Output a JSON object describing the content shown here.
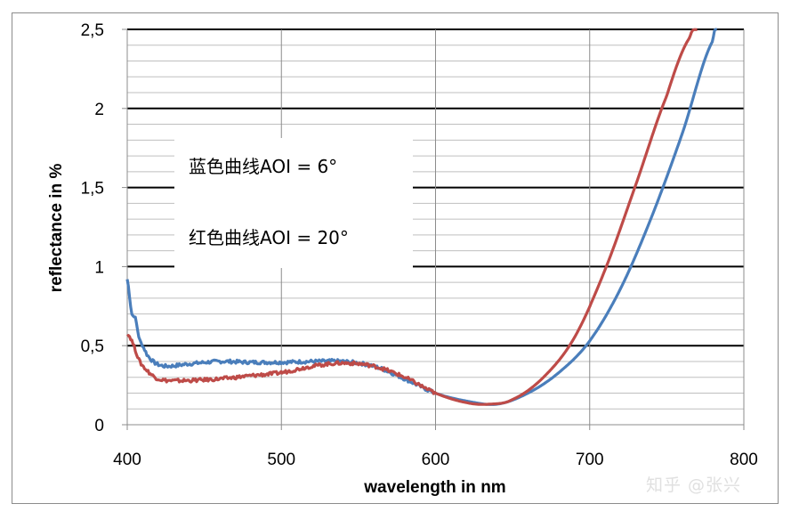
{
  "chart_data": {
    "type": "line",
    "title": "",
    "xlabel": "wavelength in nm",
    "ylabel": "reflectance in %",
    "xlim": [
      400,
      800
    ],
    "ylim": [
      0,
      2.5
    ],
    "x_ticks": [
      "400",
      "500",
      "600",
      "700",
      "800"
    ],
    "y_ticks": [
      "0",
      "0,5",
      "1",
      "1,5",
      "2",
      "2,5"
    ],
    "grid": "major and minor",
    "legend_text": [
      "蓝色曲线AOI = 6°",
      "红色曲线AOI = 20°"
    ],
    "series": [
      {
        "name": "AOI = 6°",
        "color": "#4a7ebb",
        "x": [
          400,
          401,
          403,
          405,
          408,
          410,
          413,
          418,
          425,
          440,
          460,
          480,
          500,
          520,
          540,
          560,
          580,
          600,
          620,
          640,
          660,
          680,
          700,
          720,
          740,
          760,
          780,
          783
        ],
        "y": [
          0.92,
          0.85,
          0.7,
          0.68,
          0.54,
          0.5,
          0.44,
          0.39,
          0.37,
          0.385,
          0.4,
          0.395,
          0.395,
          0.4,
          0.4,
          0.37,
          0.29,
          0.2,
          0.15,
          0.13,
          0.2,
          0.33,
          0.53,
          0.86,
          1.31,
          1.84,
          2.43,
          2.5
        ]
      },
      {
        "name": "AOI = 20°",
        "color": "#be4b48",
        "x": [
          400,
          402,
          405,
          408,
          412,
          418,
          425,
          440,
          460,
          480,
          500,
          520,
          540,
          560,
          580,
          600,
          620,
          635,
          650,
          670,
          690,
          710,
          730,
          750,
          765,
          770
        ],
        "y": [
          0.57,
          0.55,
          0.48,
          0.4,
          0.35,
          0.3,
          0.28,
          0.28,
          0.29,
          0.31,
          0.33,
          0.37,
          0.39,
          0.37,
          0.3,
          0.2,
          0.14,
          0.13,
          0.16,
          0.3,
          0.55,
          0.98,
          1.52,
          2.08,
          2.45,
          2.5
        ]
      }
    ]
  },
  "watermark": "知乎 @张兴"
}
